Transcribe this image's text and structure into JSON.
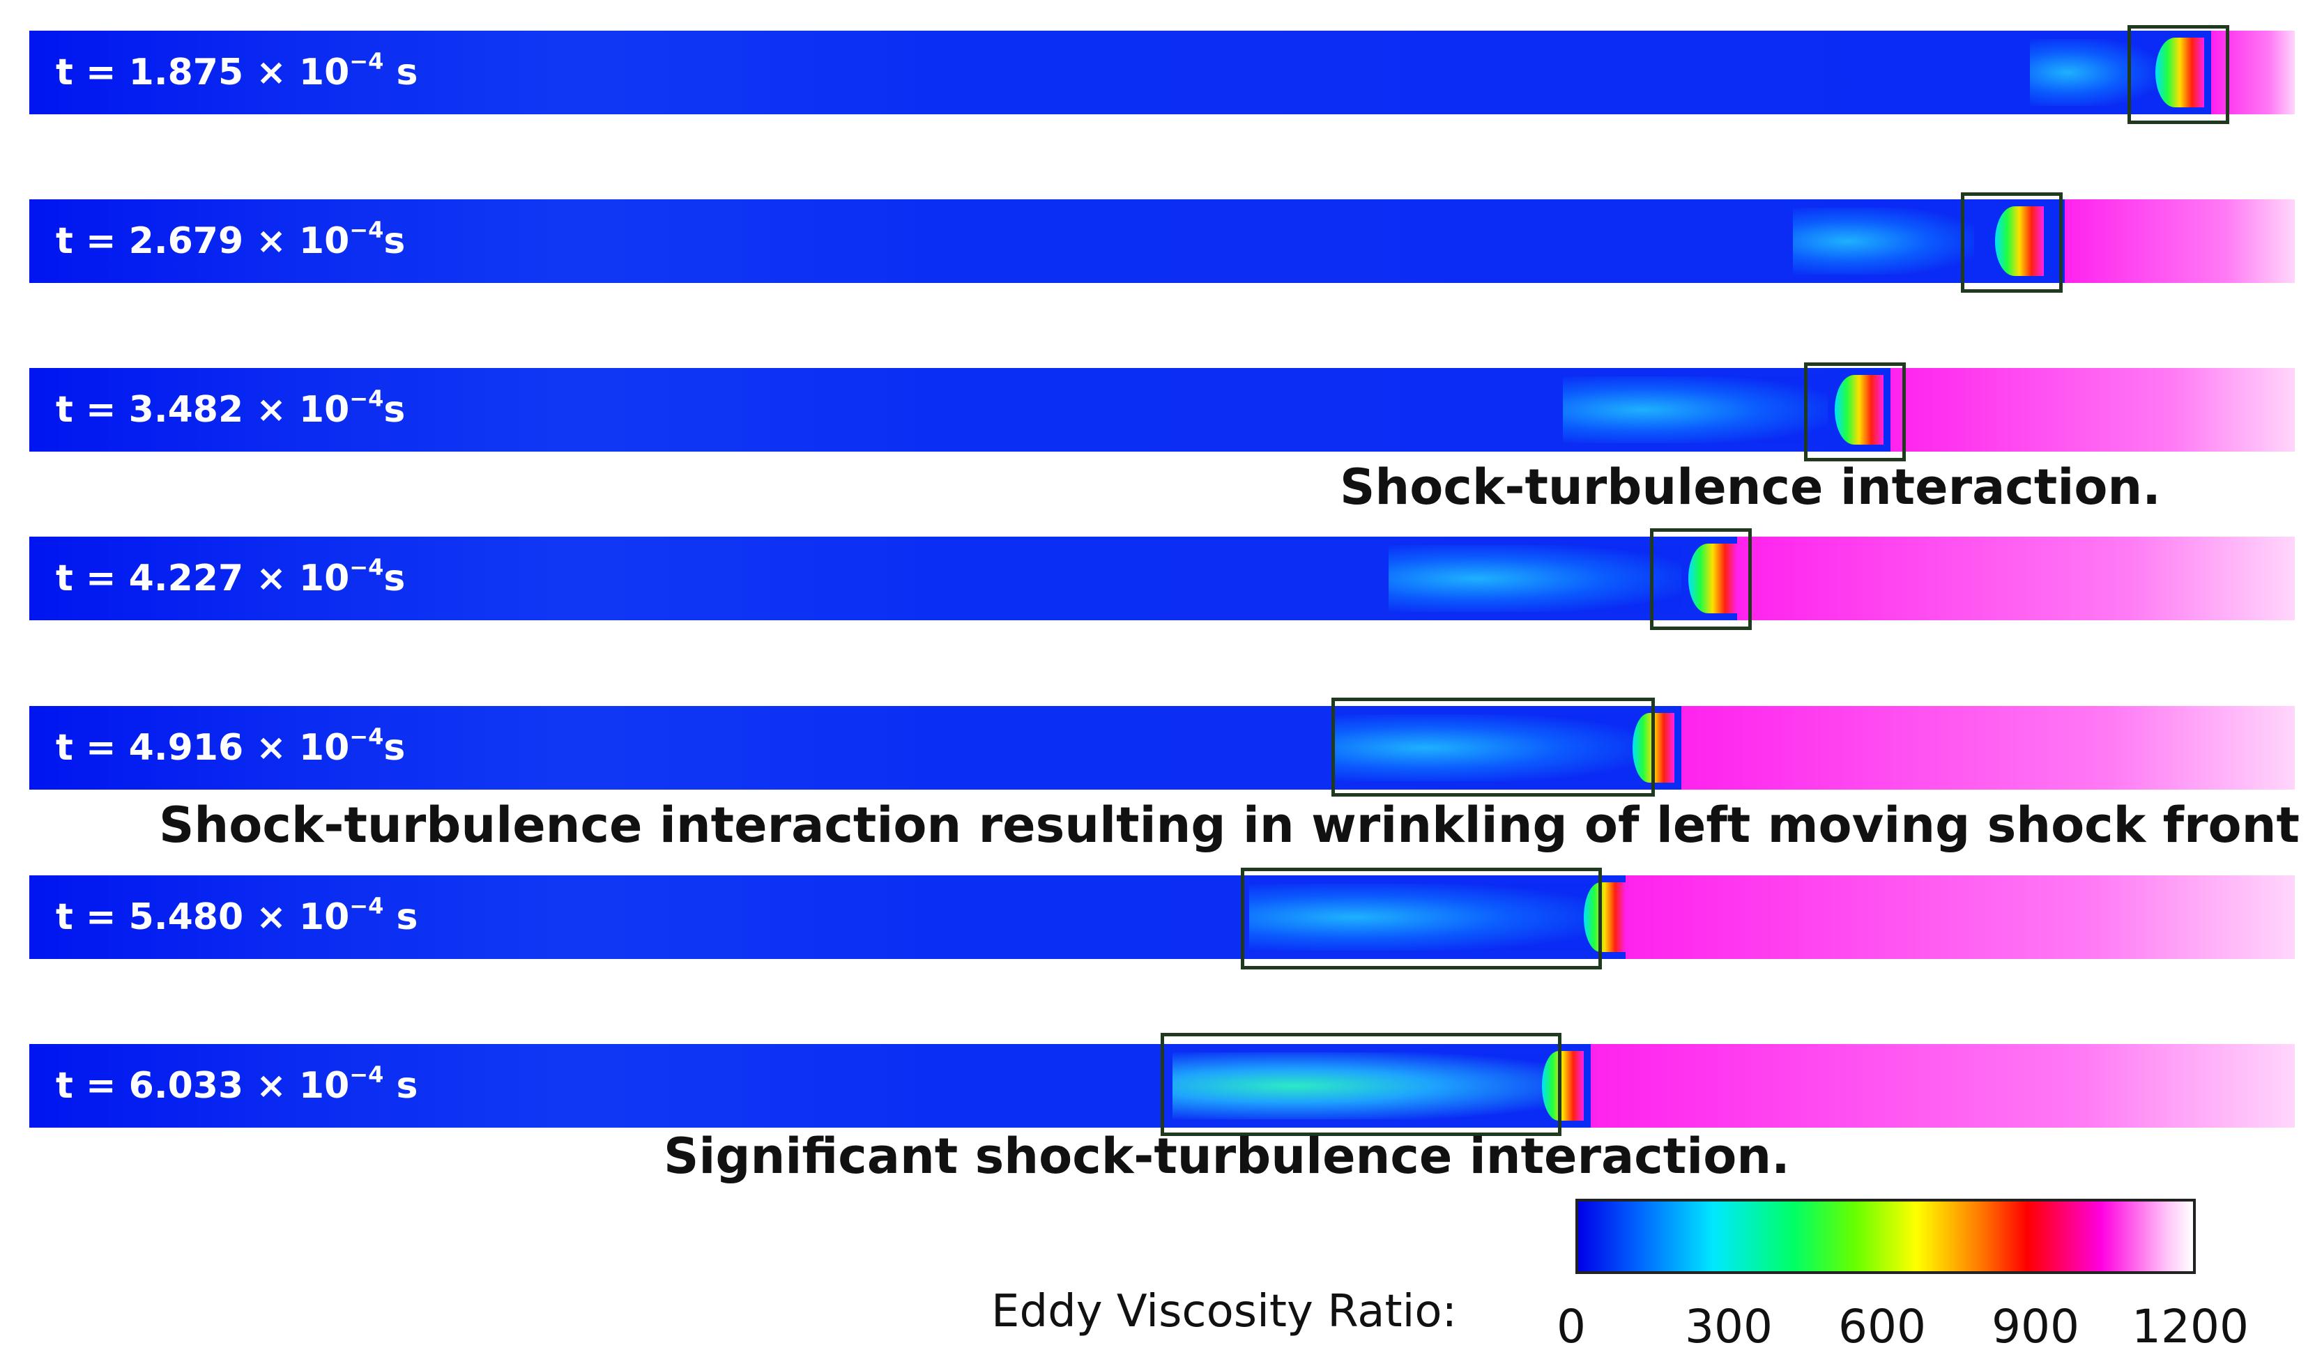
{
  "panels": [
    {
      "t": "1.875",
      "exp": "−4",
      "unit": "s"
    },
    {
      "t": "2.679",
      "exp": "−4",
      "unit": "s"
    },
    {
      "t": "3.482",
      "exp": "−4",
      "unit": "s"
    },
    {
      "t": "4.227",
      "exp": "−4",
      "unit": "s"
    },
    {
      "t": "4.916",
      "exp": "−4",
      "unit": "s"
    },
    {
      "t": "5.480",
      "exp": "−4",
      "unit": "s"
    },
    {
      "t": "6.033",
      "exp": "−4",
      "unit": "s"
    }
  ],
  "time_prefix": "t = ",
  "times_sep": " × 10",
  "annotations": {
    "a1": "Shock-turbulence interaction.",
    "a2": "Shock-turbulence interaction resulting in wrinkling of left moving shock front .",
    "a3": "Significant shock-turbulence interaction."
  },
  "colorbar": {
    "title": "Eddy Viscosity Ratio:",
    "ticks": [
      "0",
      "300",
      "600",
      "900",
      "1200"
    ],
    "colors": [
      "#0000e8",
      "#00e8ff",
      "#00ff66",
      "#ffff00",
      "#ff0000",
      "#ff00e0",
      "#ffffff"
    ]
  }
}
